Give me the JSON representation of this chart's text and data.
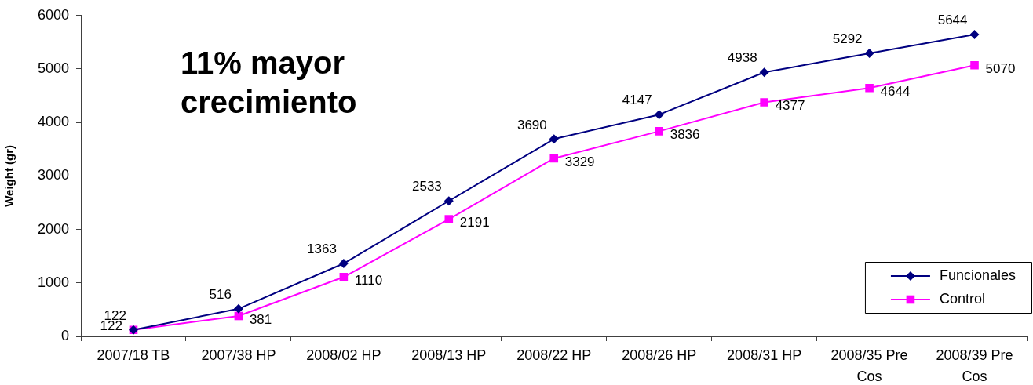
{
  "chart_data": {
    "type": "line",
    "ylabel": "Weight (gr)",
    "annotations": [
      "11% mayor crecimiento"
    ],
    "categories": [
      "2007/18 TB",
      "2007/38 HP",
      "2008/02 HP",
      "2008/13 HP",
      "2008/22 HP",
      "2008/26 HP",
      "2008/31 HP",
      "2008/35 Pre Cos",
      "2008/39 Pre Cos"
    ],
    "series": [
      {
        "name": "Funcionales",
        "color": "#000080",
        "marker": "diamond",
        "values": [
          122,
          516,
          1363,
          2533,
          3690,
          4147,
          4938,
          5292,
          5644
        ]
      },
      {
        "name": "Control",
        "color": "#ff00ff",
        "marker": "square",
        "values": [
          122,
          381,
          1110,
          2191,
          3329,
          3836,
          4377,
          4644,
          5070
        ]
      }
    ],
    "ylim": [
      0,
      6000
    ],
    "yticks": [
      0,
      1000,
      2000,
      3000,
      4000,
      5000,
      6000
    ],
    "grid": false,
    "legend": "bottom right",
    "data_labels": true,
    "line_style": "solid"
  }
}
